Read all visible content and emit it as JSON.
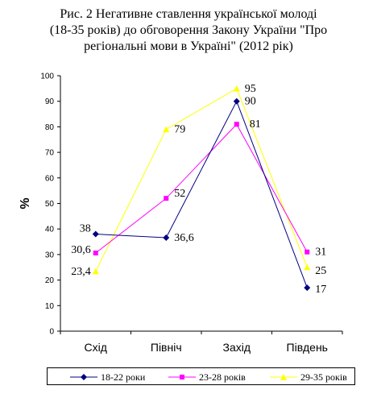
{
  "chart_data": {
    "type": "line",
    "title_lines": [
      "Рис. 2 Негативне ставлення української молоді",
      "(18-35 років) до обговорення Закону України \"Про",
      "регіональні мови в Україні\" (2012 рік)"
    ],
    "ylabel": "%",
    "xlabel": "",
    "categories": [
      "Схід",
      "Північ",
      "Захід",
      "Південь"
    ],
    "ylim": [
      0,
      100
    ],
    "yticks": [
      0,
      10,
      20,
      30,
      40,
      50,
      60,
      70,
      80,
      90,
      100
    ],
    "grid": false,
    "legend_position": "bottom",
    "series": [
      {
        "name": "18-22 роки",
        "values": [
          38,
          36.6,
          90,
          17
        ],
        "labels": [
          "38",
          "36,6",
          "90",
          "17"
        ],
        "color": "#000080",
        "marker": "diamond"
      },
      {
        "name": "23-28 років",
        "values": [
          30.6,
          52,
          81,
          31
        ],
        "labels": [
          "30,6",
          "52",
          "81",
          "31"
        ],
        "color": "#FF00FF",
        "marker": "square"
      },
      {
        "name": "29-35 років",
        "values": [
          23.4,
          79,
          95,
          25
        ],
        "labels": [
          "23,4",
          "79",
          "95",
          "25"
        ],
        "color": "#FFFF00",
        "marker": "triangle"
      }
    ]
  }
}
